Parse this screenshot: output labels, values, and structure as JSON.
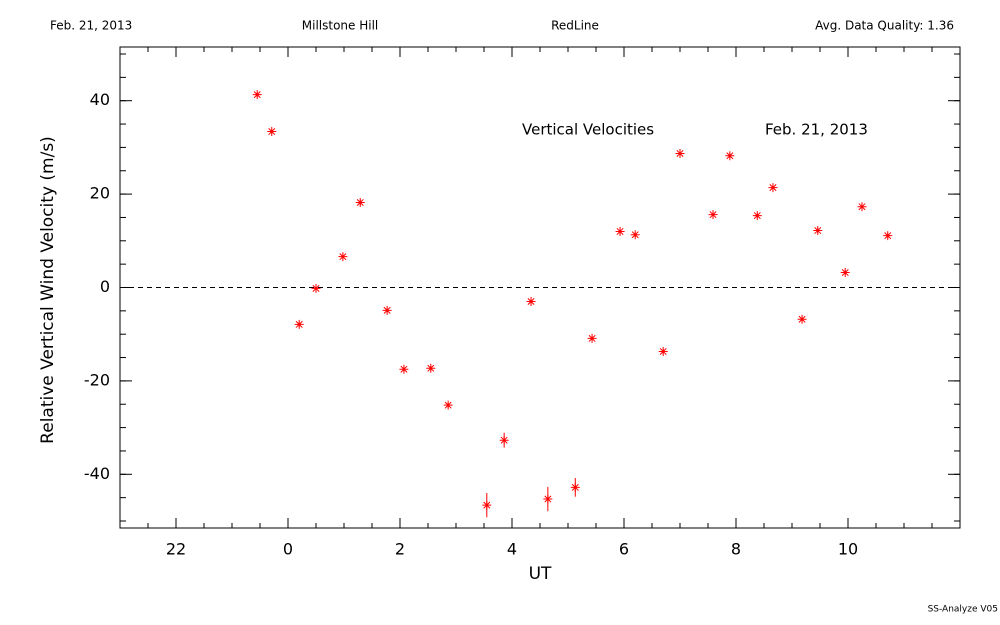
{
  "header": {
    "date": "Feb. 21, 2013",
    "site": "Millstone Hill",
    "channel": "RedLine",
    "quality": "Avg. Data Quality: 1.36"
  },
  "footer": "SS-Analyze V05",
  "chart_data": {
    "type": "scatter",
    "annotations": [
      "Vertical Velocities",
      "Feb. 21, 2013"
    ],
    "x_label": "UT",
    "y_label": "Relative Vertical Wind Velocity (m/s)",
    "xlim": [
      -3,
      12
    ],
    "xticks": [
      {
        "value": -2,
        "label": "22"
      },
      0,
      2,
      4,
      6,
      8,
      10
    ],
    "ylim": [
      -51.5,
      51.5
    ],
    "yticks": [
      -40,
      -20,
      0,
      20,
      40
    ],
    "reference_line": 0,
    "series": [
      {
        "name": "Vertical Velocities",
        "color": "#ff0000",
        "x": [
          -0.55,
          -0.29,
          0.2,
          0.5,
          0.98,
          1.29,
          1.77,
          2.07,
          2.55,
          2.86,
          3.55,
          3.86,
          4.34,
          4.64,
          5.13,
          5.43,
          5.93,
          6.2,
          6.7,
          7.0,
          7.59,
          7.89,
          8.38,
          8.66,
          9.18,
          9.46,
          9.95,
          10.25,
          10.71
        ],
        "values": [
          41.3,
          33.4,
          -7.9,
          -0.2,
          6.6,
          18.2,
          -4.9,
          -17.5,
          -17.3,
          -25.2,
          -46.6,
          -32.7,
          -3.0,
          -45.3,
          -42.8,
          -10.9,
          12.0,
          11.3,
          -13.7,
          28.7,
          15.6,
          28.2,
          15.4,
          21.4,
          -6.8,
          12.2,
          3.2,
          17.3,
          11.1
        ],
        "errors": [
          0.5,
          0.5,
          0.5,
          0.5,
          0.5,
          0.5,
          0.5,
          0.5,
          0.5,
          0.5,
          2.6,
          1.6,
          0.5,
          2.6,
          2.0,
          0.5,
          0.5,
          0.5,
          0.5,
          0.5,
          0.5,
          0.5,
          0.5,
          0.5,
          0.5,
          0.5,
          0.5,
          0.5,
          0.5
        ]
      }
    ]
  }
}
